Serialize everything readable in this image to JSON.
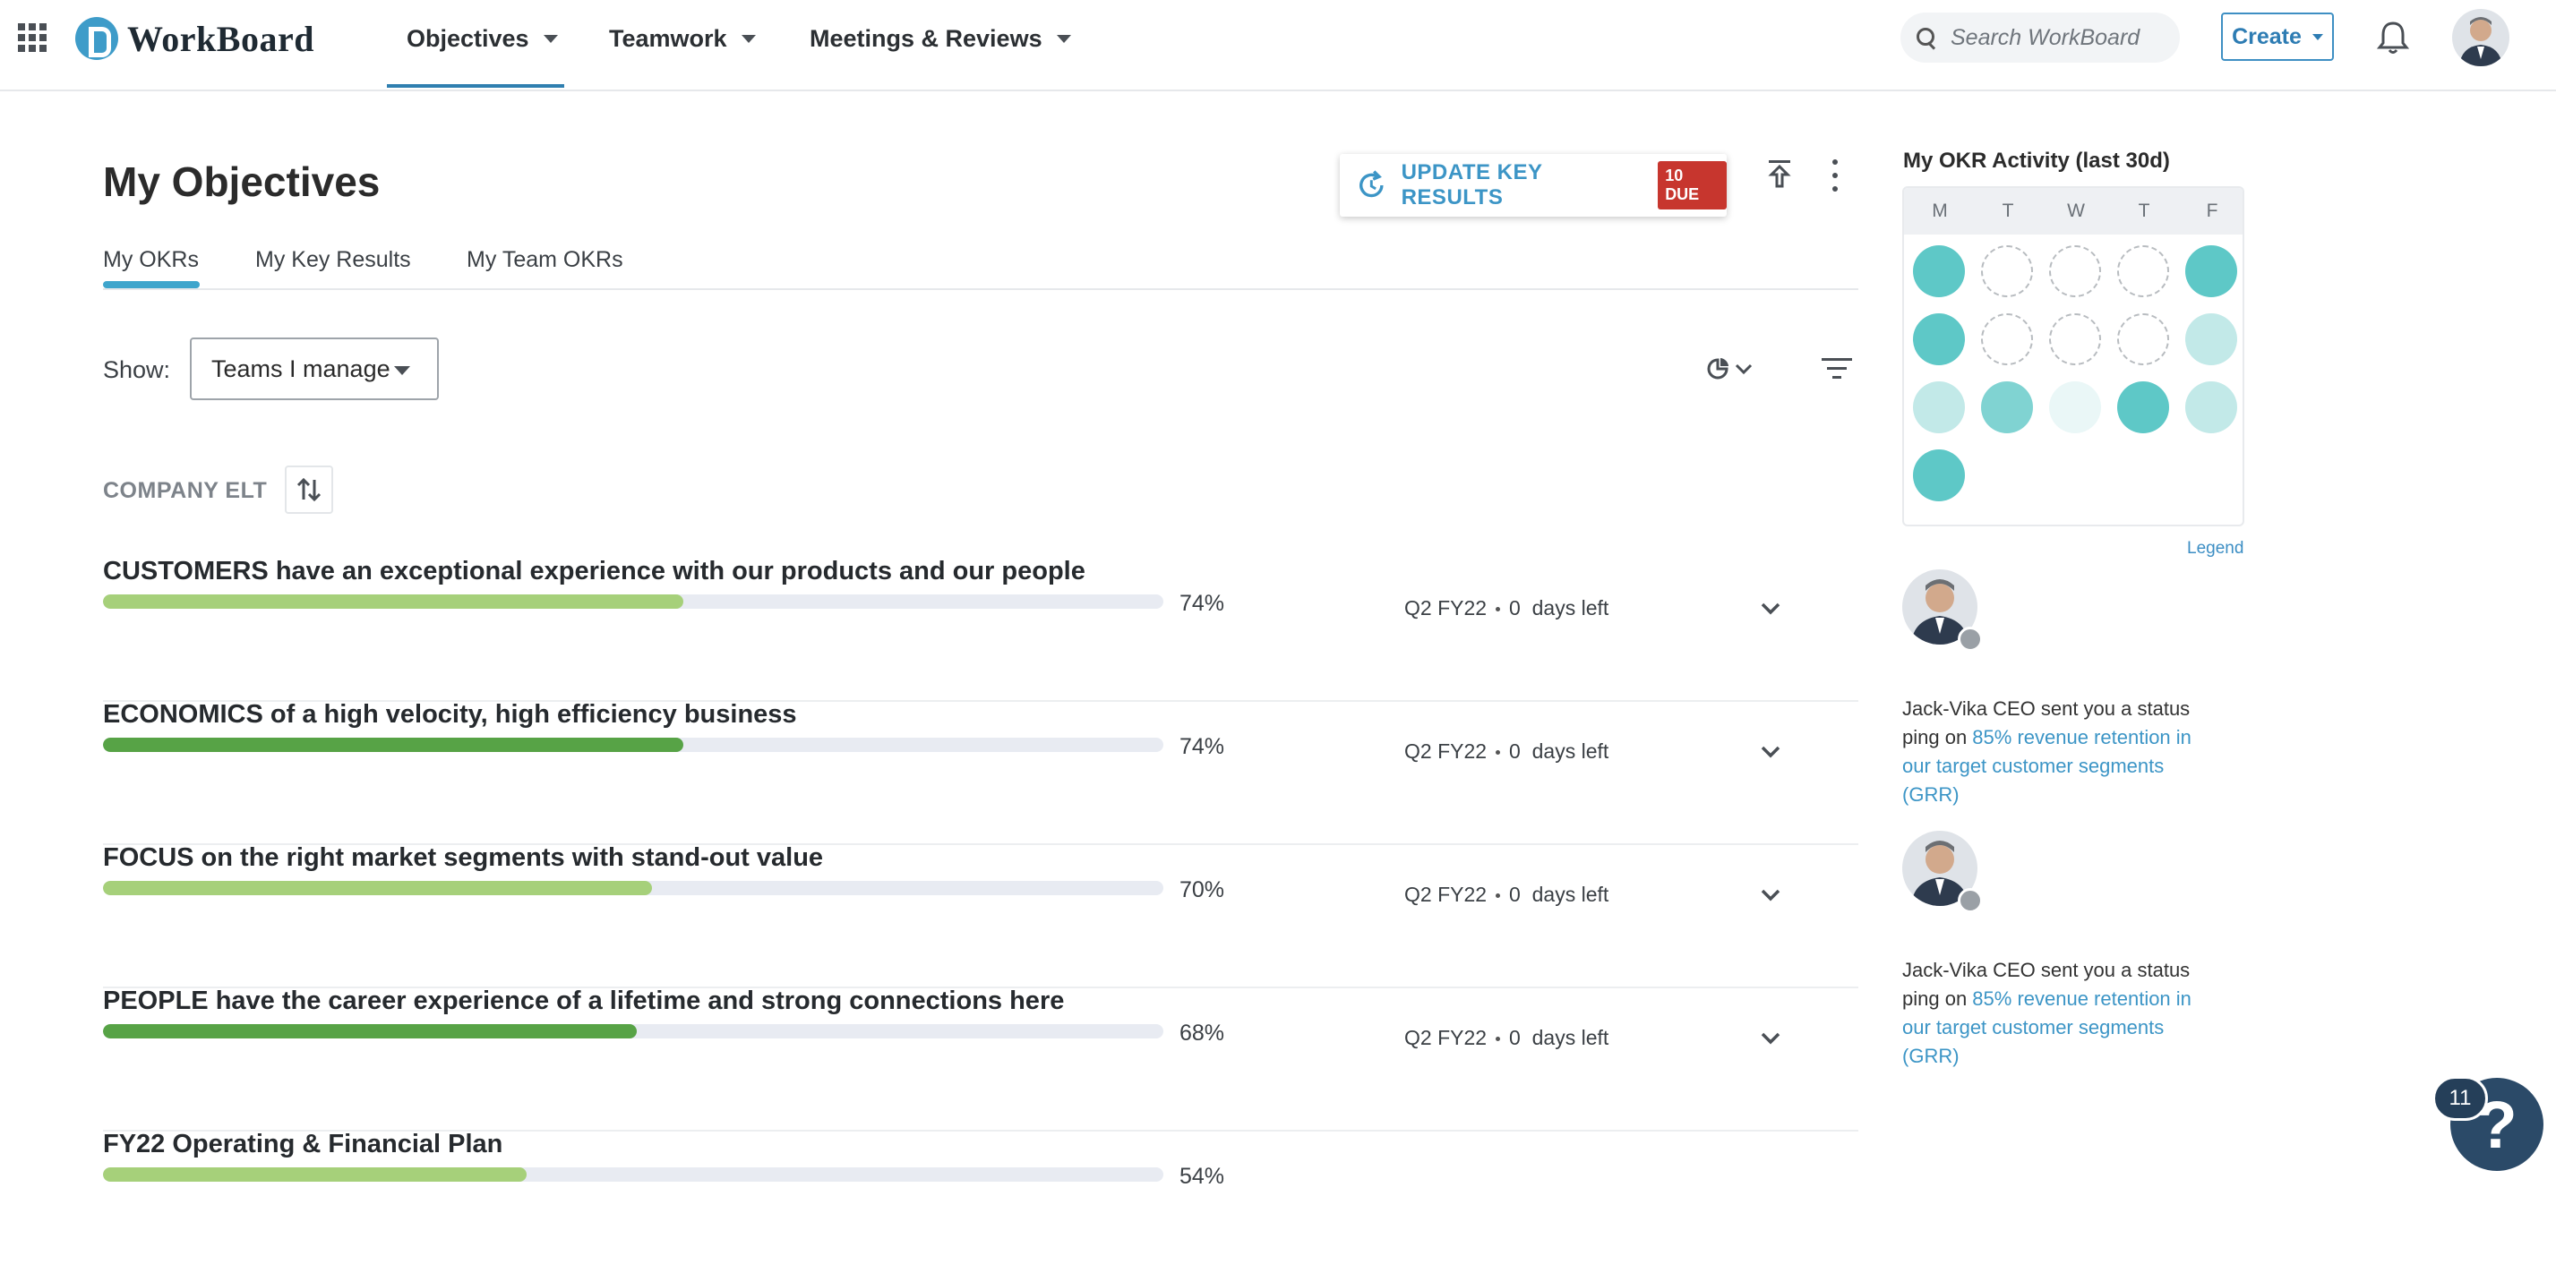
{
  "app": {
    "name": "WorkBoard"
  },
  "nav": {
    "items": [
      {
        "label": "Objectives",
        "active": true
      },
      {
        "label": "Teamwork"
      },
      {
        "label": "Meetings & Reviews"
      }
    ],
    "search_placeholder": "Search WorkBoard",
    "create_label": "Create"
  },
  "page": {
    "title": "My Objectives",
    "update_button": {
      "label": "UPDATE KEY RESULTS",
      "badge": "10 DUE"
    },
    "tabs": [
      {
        "label": "My OKRs",
        "active": true
      },
      {
        "label": "My Key Results"
      },
      {
        "label": "My Team OKRs"
      }
    ],
    "show": {
      "label": "Show:",
      "value": "Teams I manage"
    },
    "group": "COMPANY ELT",
    "objectives": [
      {
        "title": "CUSTOMERS have an exceptional experience with our products and our people",
        "progress": 74,
        "pct": "74%",
        "period": "Q2 FY22",
        "days": "0",
        "days_label": "days left",
        "color": "#a6d07a"
      },
      {
        "title": "ECONOMICS of a high velocity, high efficiency business",
        "progress": 74,
        "pct": "74%",
        "period": "Q2 FY22",
        "days": "0",
        "days_label": "days left",
        "color": "#57a346"
      },
      {
        "title": "FOCUS on the right market segments with stand-out value",
        "progress": 70,
        "pct": "70%",
        "period": "Q2 FY22",
        "days": "0",
        "days_label": "days left",
        "color": "#a6d07a"
      },
      {
        "title": "PEOPLE have the career experience of a lifetime and strong connections here",
        "progress": 68,
        "pct": "68%",
        "period": "Q2 FY22",
        "days": "0",
        "days_label": "days left",
        "color": "#57a346"
      },
      {
        "title": "FY22 Operating & Financial Plan",
        "progress": 54,
        "pct": "54%",
        "period": "",
        "days": "",
        "days_label": "",
        "color": "#a6d07a"
      }
    ]
  },
  "activity": {
    "title": "My OKR Activity (last 30d)",
    "days": [
      "M",
      "T",
      "W",
      "T",
      "F"
    ],
    "weeks": [
      [
        "high",
        "empty",
        "empty",
        "empty",
        "high"
      ],
      [
        "high",
        "empty",
        "empty",
        "empty",
        "low"
      ],
      [
        "low",
        "mid",
        "faint",
        "high",
        "low"
      ],
      [
        "high"
      ]
    ],
    "legend_label": "Legend"
  },
  "feed": [
    {
      "text": "Jack-Vika CEO sent you a status ping on ",
      "link": "85% revenue retention in our target customer segments (GRR)"
    },
    {
      "text": "Jack-Vika CEO sent you a status ping on ",
      "link": "85% revenue retention in our target customer segments (GRR)"
    }
  ],
  "help": {
    "badge": "11",
    "icon": "?"
  }
}
